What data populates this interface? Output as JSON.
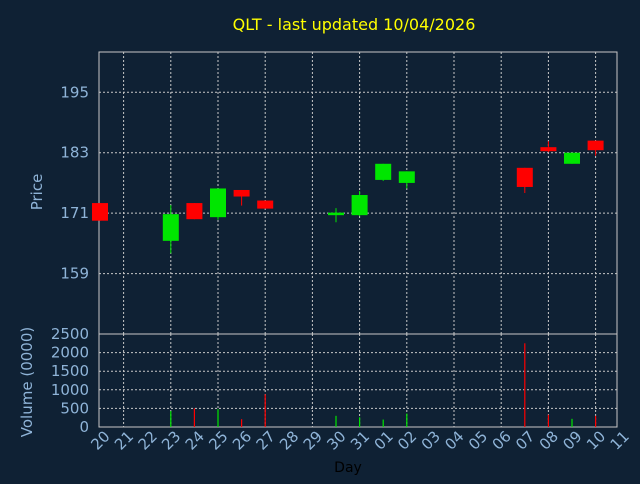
{
  "chart_data": [
    {
      "type": "candlestick",
      "title": "QLT - last updated 10/04/2026",
      "ylabel": "Price",
      "ylim": [
        147,
        203
      ],
      "yticks": [
        "195",
        "183",
        "171",
        "159"
      ],
      "ytick_values": [
        195,
        183,
        171,
        159
      ],
      "grid": true,
      "colors": {
        "up": "#00e600",
        "down": "#ff0000",
        "background": "#0f2134",
        "grid": "#c8c8c8",
        "title": "#ffff00",
        "axis_text": "#8fb4d8"
      },
      "candles": [
        {
          "x": "20",
          "open": 173.0,
          "close": 169.5,
          "high": 173.0,
          "low": 169.5
        },
        {
          "x": "23",
          "open": 165.5,
          "close": 170.8,
          "high": 172.6,
          "low": 163.0
        },
        {
          "x": "24",
          "open": 173.0,
          "close": 169.8,
          "high": 173.0,
          "low": 169.8
        },
        {
          "x": "25",
          "open": 170.2,
          "close": 175.9,
          "high": 175.9,
          "low": 169.7
        },
        {
          "x": "26",
          "open": 175.6,
          "close": 174.3,
          "high": 175.6,
          "low": 172.5
        },
        {
          "x": "27",
          "open": 173.5,
          "close": 171.9,
          "high": 173.5,
          "low": 171.9
        },
        {
          "x": "30",
          "open": 170.6,
          "close": 171.1,
          "high": 172.0,
          "low": 169.2
        },
        {
          "x": "31",
          "open": 170.6,
          "close": 174.6,
          "high": 175.4,
          "low": 170.4
        },
        {
          "x": "01",
          "open": 177.6,
          "close": 180.8,
          "high": 180.8,
          "low": 177.4
        },
        {
          "x": "02",
          "open": 177.0,
          "close": 179.3,
          "high": 179.3,
          "low": 175.9
        },
        {
          "x": "07",
          "open": 180.0,
          "close": 176.2,
          "high": 180.0,
          "low": 175.0
        },
        {
          "x": "08",
          "open": 184.1,
          "close": 183.3,
          "high": 185.3,
          "low": 183.1
        },
        {
          "x": "09",
          "open": 180.8,
          "close": 183.0,
          "high": 183.0,
          "low": 180.8
        },
        {
          "x": "10",
          "open": 185.4,
          "close": 183.5,
          "high": 185.4,
          "low": 182.4
        }
      ]
    },
    {
      "type": "bar",
      "xlabel": "Day",
      "ylabel": "Volume (0000)",
      "ylim": [
        0,
        2500
      ],
      "yticks": [
        "2500",
        "2000",
        "1500",
        "1000",
        "500",
        "0"
      ],
      "ytick_values": [
        2500,
        2000,
        1500,
        1000,
        500,
        0
      ],
      "categories": [
        "20",
        "21",
        "22",
        "23",
        "24",
        "25",
        "26",
        "27",
        "28",
        "29",
        "30",
        "31",
        "01",
        "02",
        "03",
        "04",
        "05",
        "06",
        "07",
        "08",
        "09",
        "10",
        "11"
      ],
      "bars": [
        {
          "x": "23",
          "value": 430,
          "direction": "up"
        },
        {
          "x": "24",
          "value": 500,
          "direction": "down"
        },
        {
          "x": "25",
          "value": 480,
          "direction": "up"
        },
        {
          "x": "26",
          "value": 210,
          "direction": "down"
        },
        {
          "x": "27",
          "value": 880,
          "direction": "down"
        },
        {
          "x": "30",
          "value": 300,
          "direction": "up"
        },
        {
          "x": "31",
          "value": 260,
          "direction": "up"
        },
        {
          "x": "01",
          "value": 200,
          "direction": "up"
        },
        {
          "x": "02",
          "value": 360,
          "direction": "up"
        },
        {
          "x": "07",
          "value": 2250,
          "direction": "down"
        },
        {
          "x": "08",
          "value": 330,
          "direction": "down"
        },
        {
          "x": "09",
          "value": 220,
          "direction": "up"
        },
        {
          "x": "10",
          "value": 300,
          "direction": "down"
        }
      ]
    }
  ]
}
